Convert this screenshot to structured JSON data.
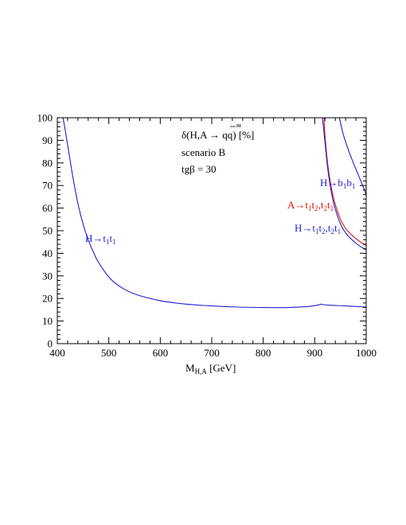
{
  "chart_data": {
    "type": "line",
    "xlabel": "M",
    "xlabel_sub": "H,A",
    "xlabel_unit": " [GeV]",
    "ylabel": "",
    "xlim": [
      400,
      1000
    ],
    "ylim": [
      0,
      100
    ],
    "x_ticks": [
      "400",
      "500",
      "600",
      "700",
      "800",
      "900",
      "1000"
    ],
    "y_ticks": [
      "0",
      "10",
      "20",
      "30",
      "40",
      "50",
      "60",
      "70",
      "80",
      "90",
      "100"
    ],
    "grid": false,
    "annotations": {
      "line1": "δ(H,A → qq) [%]",
      "line2": "scenario B",
      "line3": "tgβ = 30"
    },
    "colors": {
      "blue": "#1f1fd0",
      "red": "#e01010",
      "axis": "#000000"
    },
    "series": [
      {
        "label": "H→t₁t₁",
        "color": "blue",
        "x": [
          411,
          415,
          420,
          425,
          430,
          440,
          450,
          460,
          470,
          480,
          500,
          520,
          550,
          600,
          650,
          700,
          750,
          800,
          850,
          880,
          900,
          910,
          912,
          915,
          930,
          960,
          1000
        ],
        "y": [
          100,
          95,
          88,
          81,
          74,
          62,
          53,
          46,
          40.5,
          36,
          29.5,
          25.5,
          22,
          19,
          17.5,
          16.7,
          16.2,
          16,
          16,
          16.3,
          16.8,
          17.3,
          17.5,
          17.3,
          17,
          16.7,
          16.2
        ]
      },
      {
        "label": "A→t₁t₂,t₂t₁",
        "color": "red",
        "x": [
          918,
          920,
          925,
          930,
          935,
          940,
          950,
          960,
          970,
          980,
          990,
          1000
        ],
        "y": [
          100,
          92,
          80,
          72,
          66,
          61.5,
          55,
          51,
          48.5,
          46.5,
          44.8,
          43.5
        ]
      },
      {
        "label": "H→t₁t₂,t₂t₁",
        "color": "blue",
        "x": [
          915,
          920,
          925,
          930,
          935,
          940,
          950,
          960,
          970,
          980,
          990,
          1000
        ],
        "y": [
          100,
          89,
          78,
          70,
          64,
          59.5,
          53,
          49,
          46.5,
          44.5,
          42.8,
          41.5
        ]
      },
      {
        "label": "H→b₁b₁",
        "color": "blue",
        "x": [
          948,
          955,
          965,
          975,
          985,
          995,
          1000
        ],
        "y": [
          100,
          93,
          86,
          80,
          74.5,
          69,
          66
        ]
      }
    ],
    "curve_labels": [
      {
        "main": "H→",
        "parts": [
          "t",
          "1",
          "t",
          "1"
        ],
        "color": "blue"
      },
      {
        "main": "A→",
        "parts": [
          "t",
          "1",
          "t",
          "2",
          ",",
          "t",
          "2",
          "t",
          "1"
        ],
        "color": "red"
      },
      {
        "main": "H→",
        "parts": [
          "t",
          "1",
          "t",
          "2",
          ",",
          "t",
          "2",
          "t",
          "1"
        ],
        "color": "blue"
      },
      {
        "main": "H→",
        "parts": [
          "b",
          "1",
          "b",
          "1"
        ],
        "color": "blue"
      }
    ]
  }
}
